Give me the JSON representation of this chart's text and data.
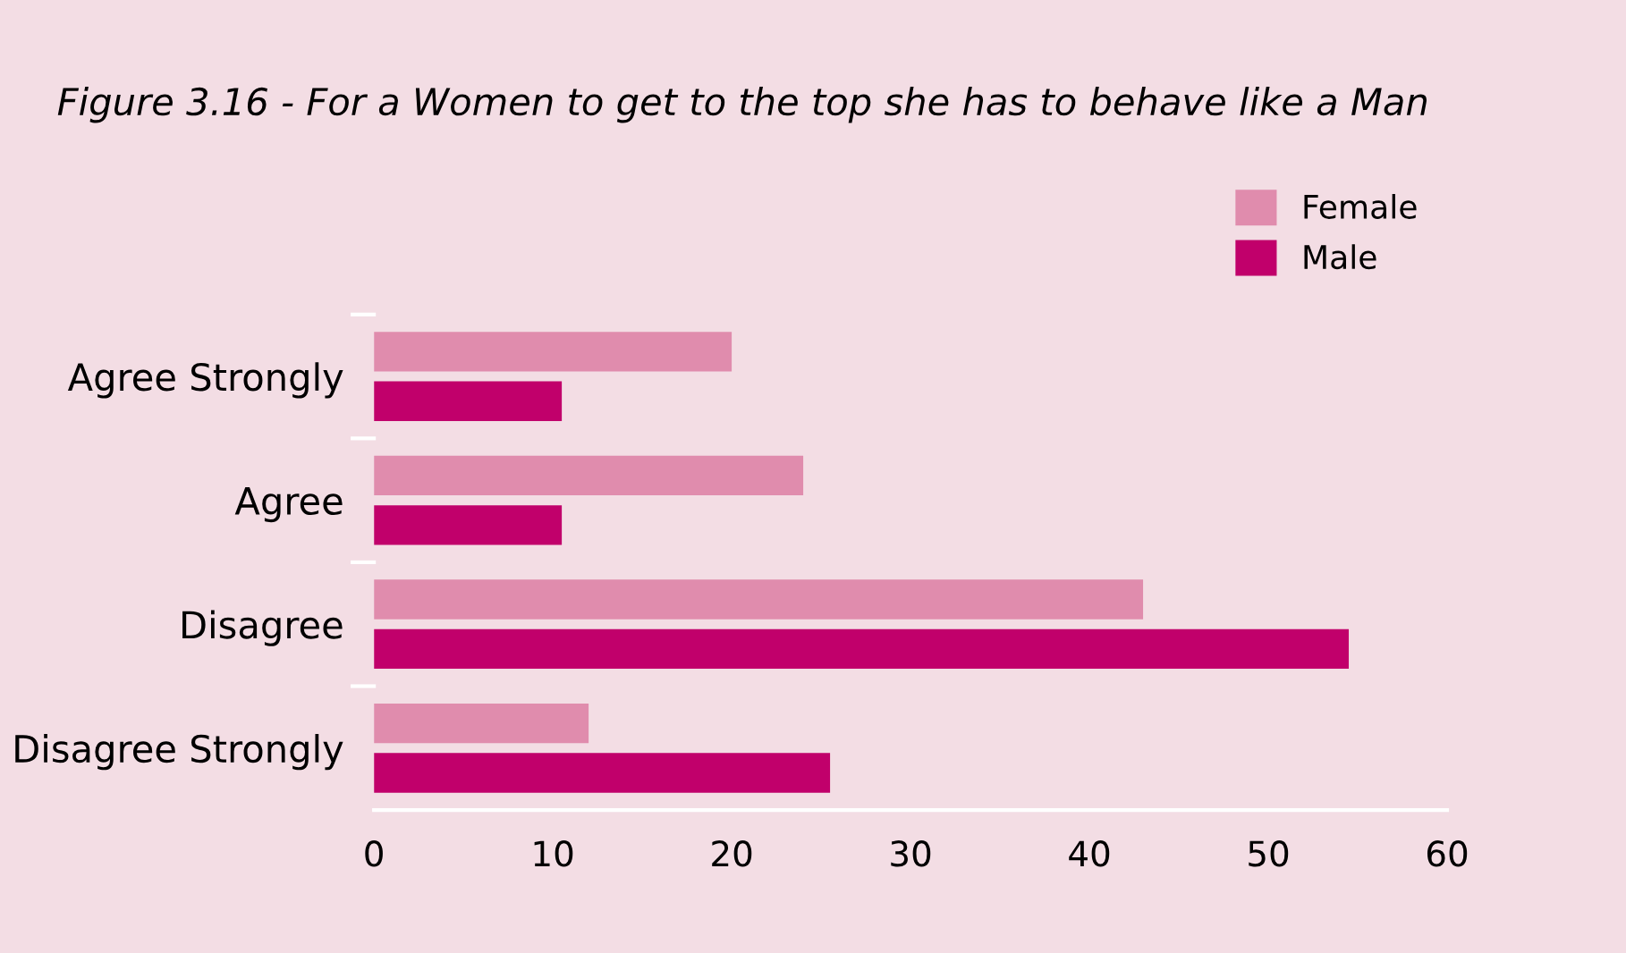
{
  "chart_data": {
    "type": "bar",
    "orientation": "horizontal",
    "title": "Figure 3.16 - For a Women to get to the top she has to behave like a Man",
    "categories": [
      "Agree Strongly",
      "Agree",
      "Disagree",
      "Disagree Strongly"
    ],
    "series": [
      {
        "name": "Female",
        "color": "#e08cad",
        "values": [
          20,
          24,
          43,
          12
        ]
      },
      {
        "name": "Male",
        "color": "#c1006b",
        "values": [
          10.5,
          10.5,
          54.5,
          25.5
        ]
      }
    ],
    "xlim": [
      0,
      60
    ],
    "xticks": [
      0,
      10,
      20,
      30,
      40,
      50,
      60
    ],
    "grid": false,
    "legend": "top right"
  }
}
